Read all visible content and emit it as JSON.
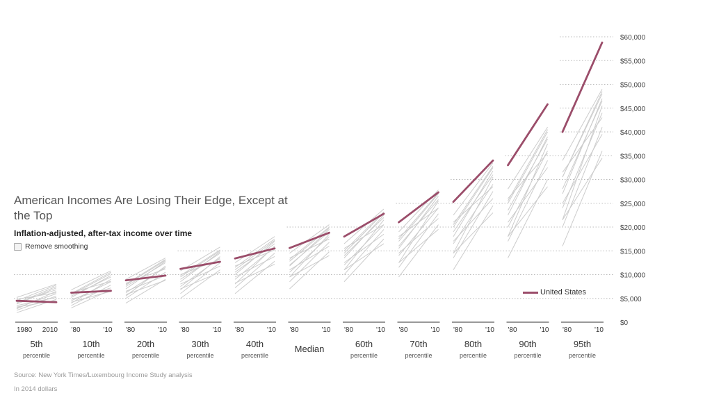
{
  "title": "American Incomes Are Losing Their Edge, Except at the Top",
  "subtitle": "Inflation-adjusted, after-tax income over time",
  "toggle_label": "Remove smoothing",
  "legend_label": "United States",
  "source": "Source: New York Times/Luxembourg Income Study analysis",
  "note": "In 2014 dollars",
  "colors": {
    "us": "#9b4d6a",
    "other": "#cccccc",
    "grid": "#bbbbbb",
    "axis": "#333333"
  },
  "chart_data": {
    "type": "line",
    "ylim": [
      0,
      60000
    ],
    "y_ticks": [
      "$0",
      "$5,000",
      "$10,000",
      "$15,000",
      "$20,000",
      "$25,000",
      "$30,000",
      "$35,000",
      "$40,000",
      "$45,000",
      "$50,000",
      "$55,000",
      "$60,000"
    ],
    "x_range": [
      1980,
      2010
    ],
    "panels": [
      {
        "name": "5th",
        "sub": "percentile",
        "xlab": [
          "1980",
          "2010"
        ],
        "us": [
          4500,
          4200
        ],
        "others": [
          [
            3000,
            6000
          ],
          [
            4200,
            6800
          ],
          [
            2500,
            5500
          ],
          [
            4000,
            7500
          ],
          [
            5200,
            8000
          ],
          [
            3500,
            5200
          ],
          [
            2800,
            6500
          ],
          [
            4800,
            6200
          ],
          [
            2000,
            4800
          ],
          [
            3800,
            7200
          ],
          [
            4500,
            7800
          ],
          [
            3200,
            4500
          ]
        ]
      },
      {
        "name": "10th",
        "sub": "percentile",
        "xlab": [
          "'80",
          "'10"
        ],
        "us": [
          6200,
          6600
        ],
        "others": [
          [
            4500,
            8500
          ],
          [
            5500,
            9500
          ],
          [
            3500,
            7800
          ],
          [
            5800,
            10200
          ],
          [
            6800,
            10800
          ],
          [
            4800,
            7200
          ],
          [
            4000,
            9000
          ],
          [
            6200,
            8600
          ],
          [
            3000,
            6800
          ],
          [
            5200,
            9800
          ],
          [
            6000,
            10500
          ],
          [
            4200,
            6500
          ]
        ]
      },
      {
        "name": "20th",
        "sub": "percentile",
        "xlab": [
          "'80",
          "'10"
        ],
        "us": [
          8800,
          9800
        ],
        "others": [
          [
            6200,
            11500
          ],
          [
            7500,
            12500
          ],
          [
            5000,
            10500
          ],
          [
            7800,
            13000
          ],
          [
            9000,
            13500
          ],
          [
            6500,
            9800
          ],
          [
            5500,
            11800
          ],
          [
            8200,
            11200
          ],
          [
            4000,
            9000
          ],
          [
            7000,
            12800
          ],
          [
            8000,
            13200
          ],
          [
            5800,
            8800
          ]
        ]
      },
      {
        "name": "30th",
        "sub": "percentile",
        "xlab": [
          "'80",
          "'10"
        ],
        "us": [
          11200,
          12700
        ],
        "others": [
          [
            7500,
            13500
          ],
          [
            9000,
            14500
          ],
          [
            6000,
            12500
          ],
          [
            9500,
            15000
          ],
          [
            10800,
            15800
          ],
          [
            8000,
            11800
          ],
          [
            6800,
            13800
          ],
          [
            10000,
            13200
          ],
          [
            5000,
            11000
          ],
          [
            8500,
            14800
          ],
          [
            9800,
            15200
          ],
          [
            7000,
            10500
          ]
        ]
      },
      {
        "name": "40th",
        "sub": "percentile",
        "xlab": [
          "'80",
          "'10"
        ],
        "us": [
          13400,
          15500
        ],
        "others": [
          [
            9000,
            15800
          ],
          [
            10500,
            16500
          ],
          [
            7200,
            14500
          ],
          [
            11000,
            17200
          ],
          [
            12500,
            18000
          ],
          [
            9500,
            13800
          ],
          [
            8000,
            16000
          ],
          [
            11800,
            15200
          ],
          [
            6000,
            12800
          ],
          [
            10000,
            17000
          ],
          [
            11500,
            17500
          ],
          [
            8200,
            12200
          ]
        ]
      },
      {
        "name": "Median",
        "sub": "",
        "xlab": [
          "'80",
          "'10"
        ],
        "us": [
          15600,
          18800
        ],
        "others": [
          [
            10500,
            18000
          ],
          [
            12000,
            19000
          ],
          [
            8500,
            16800
          ],
          [
            12800,
            19800
          ],
          [
            14500,
            20500
          ],
          [
            11000,
            16000
          ],
          [
            9500,
            18500
          ],
          [
            13500,
            17500
          ],
          [
            7000,
            14800
          ],
          [
            11800,
            19500
          ],
          [
            13200,
            20000
          ],
          [
            9500,
            14000
          ]
        ]
      },
      {
        "name": "60th",
        "sub": "percentile",
        "xlab": [
          "'80",
          "'10"
        ],
        "us": [
          18000,
          22800
        ],
        "others": [
          [
            12000,
            20500
          ],
          [
            14000,
            22000
          ],
          [
            10000,
            19500
          ],
          [
            14500,
            23000
          ],
          [
            16500,
            23800
          ],
          [
            12500,
            18500
          ],
          [
            11000,
            21500
          ],
          [
            15500,
            20500
          ],
          [
            8500,
            17500
          ],
          [
            13500,
            22500
          ],
          [
            15000,
            23200
          ],
          [
            11000,
            16500
          ]
        ]
      },
      {
        "name": "70th",
        "sub": "percentile",
        "xlab": [
          "'80",
          "'10"
        ],
        "us": [
          21000,
          27300
        ],
        "others": [
          [
            14000,
            24000
          ],
          [
            16000,
            25800
          ],
          [
            11500,
            22800
          ],
          [
            17000,
            27000
          ],
          [
            19000,
            27800
          ],
          [
            14500,
            21800
          ],
          [
            12500,
            25500
          ],
          [
            18000,
            24000
          ],
          [
            9500,
            20500
          ],
          [
            15500,
            26500
          ],
          [
            17500,
            27200
          ],
          [
            12500,
            19500
          ]
        ]
      },
      {
        "name": "80th",
        "sub": "percentile",
        "xlab": [
          "'80",
          "'10"
        ],
        "us": [
          25300,
          34000
        ],
        "others": [
          [
            16500,
            29000
          ],
          [
            19000,
            31000
          ],
          [
            13500,
            27500
          ],
          [
            20000,
            32500
          ],
          [
            22500,
            33500
          ],
          [
            17000,
            26000
          ],
          [
            14500,
            30500
          ],
          [
            21000,
            28500
          ],
          [
            11000,
            24500
          ],
          [
            18000,
            31800
          ],
          [
            20500,
            32800
          ],
          [
            14500,
            23000
          ]
        ]
      },
      {
        "name": "90th",
        "sub": "percentile",
        "xlab": [
          "'80",
          "'10"
        ],
        "us": [
          33000,
          45800
        ],
        "others": [
          [
            20000,
            36000
          ],
          [
            23500,
            38500
          ],
          [
            17000,
            34000
          ],
          [
            25000,
            40000
          ],
          [
            28000,
            41000
          ],
          [
            21000,
            32500
          ],
          [
            18000,
            37500
          ],
          [
            26000,
            35500
          ],
          [
            13500,
            30000
          ],
          [
            22500,
            39000
          ],
          [
            25500,
            40500
          ],
          [
            18000,
            28500
          ]
        ]
      },
      {
        "name": "95th",
        "sub": "percentile",
        "xlab": [
          "'80",
          "'10"
        ],
        "us": [
          40000,
          58800
        ],
        "others": [
          [
            24000,
            44000
          ],
          [
            28000,
            46500
          ],
          [
            20000,
            41000
          ],
          [
            30500,
            48000
          ],
          [
            34000,
            49000
          ],
          [
            25000,
            39500
          ],
          [
            21500,
            45500
          ],
          [
            31500,
            43000
          ],
          [
            16000,
            36000
          ],
          [
            27000,
            47000
          ],
          [
            30500,
            48500
          ],
          [
            21500,
            34500
          ]
        ]
      }
    ]
  }
}
